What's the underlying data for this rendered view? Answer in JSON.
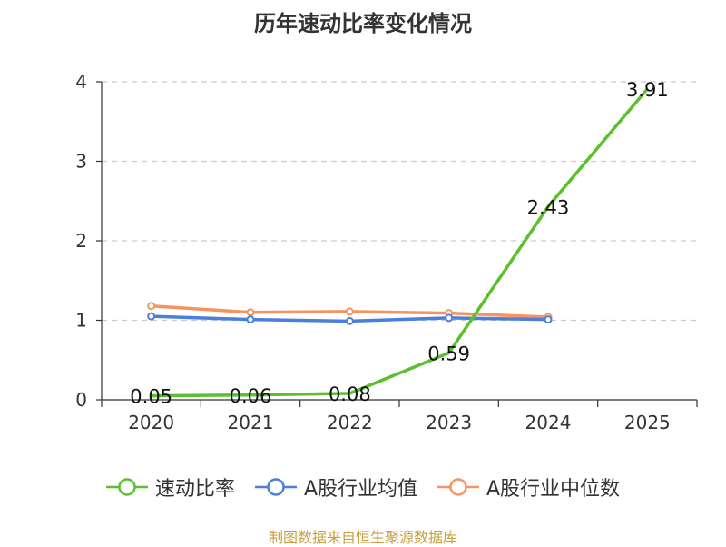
{
  "chart_data": {
    "type": "line",
    "title": "历年速动比率变化情况",
    "categories": [
      "2020",
      "2021",
      "2022",
      "2023",
      "2024",
      "2025"
    ],
    "ylim": [
      0,
      4
    ],
    "yticks": [
      "0",
      "1",
      "2",
      "3",
      "4"
    ],
    "grid": true,
    "legend_position": "bottom",
    "series": [
      {
        "name": "速动比率",
        "color": "#5cc02c",
        "values": [
          0.05,
          0.06,
          0.08,
          0.59,
          2.43,
          3.91
        ],
        "labels": [
          "0.05",
          "0.06",
          "0.08",
          "0.59",
          "2.43",
          "3.91"
        ],
        "show_labels": true,
        "markers": false
      },
      {
        "name": "A股行业均值",
        "color": "#4a7fdc",
        "values": [
          1.05,
          1.01,
          0.99,
          1.03,
          1.01,
          null
        ],
        "show_labels": false,
        "markers": true
      },
      {
        "name": "A股行业中位数",
        "color": "#f59460",
        "values": [
          1.18,
          1.1,
          1.11,
          1.09,
          1.04,
          null
        ],
        "show_labels": false,
        "markers": true
      }
    ]
  },
  "source_text": "制图数据来自恒生聚源数据库"
}
